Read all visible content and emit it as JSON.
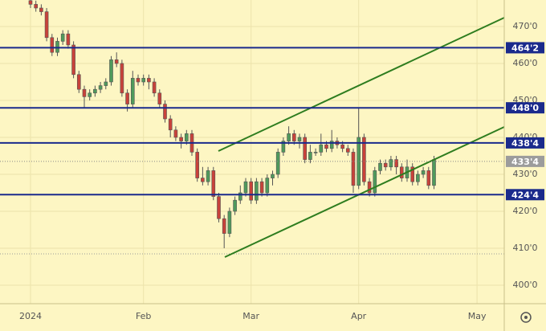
{
  "chart_data": {
    "type": "candlestick",
    "x": [
      0,
      1,
      2,
      3,
      4,
      5,
      6,
      7,
      8,
      9,
      10,
      11,
      12,
      13,
      14,
      15,
      16,
      17,
      18,
      19,
      20,
      21,
      22,
      23,
      24,
      25,
      26,
      27,
      28,
      29,
      30,
      31,
      32,
      33,
      34,
      35,
      36,
      37,
      38,
      39,
      40,
      41,
      42,
      43,
      44,
      45,
      46,
      47,
      48,
      49,
      50,
      51,
      52,
      53,
      54,
      55,
      56,
      57,
      58,
      59,
      60,
      61,
      62,
      63,
      64,
      65,
      66,
      67,
      68,
      69,
      70,
      71,
      72,
      73,
      74,
      75
    ],
    "open": [
      477,
      476,
      475,
      474,
      467,
      463,
      466,
      468,
      465,
      457,
      453,
      451,
      452,
      453,
      454,
      455,
      461,
      460,
      452,
      449,
      456,
      455,
      456,
      455,
      452,
      449,
      445,
      442,
      440,
      439,
      441,
      436,
      429,
      428,
      431,
      424,
      418,
      414,
      420,
      423,
      425,
      428,
      423,
      428,
      425,
      429,
      430,
      436,
      439,
      441,
      439,
      440,
      434,
      436,
      436,
      438,
      437,
      439,
      438,
      437,
      436,
      427,
      440,
      428,
      425,
      431,
      433,
      432,
      434,
      432,
      429,
      432,
      428,
      430,
      431,
      427
    ],
    "high": [
      478,
      477,
      476,
      475,
      468,
      467,
      469,
      469,
      466,
      458,
      454,
      453,
      454,
      455,
      456,
      462,
      463,
      461,
      453,
      458,
      457,
      457,
      457,
      456,
      453,
      450,
      446,
      443,
      441,
      442,
      442,
      437,
      432,
      432,
      432,
      425,
      419,
      421,
      424,
      427,
      429,
      429,
      429,
      429,
      430,
      431,
      437,
      440,
      443,
      442,
      441,
      441,
      438,
      437,
      441,
      439,
      442,
      440,
      439,
      438,
      437,
      448,
      441,
      429,
      432,
      434,
      434,
      435,
      435,
      433,
      434,
      433,
      431,
      432,
      432,
      435
    ],
    "low": [
      475,
      474,
      473,
      466,
      462,
      462,
      465,
      464,
      456,
      452,
      448,
      450,
      451,
      452,
      453,
      454,
      459,
      451,
      447,
      448,
      454,
      454,
      453,
      451,
      448,
      444,
      440,
      439,
      437,
      438,
      435,
      428,
      427,
      427,
      423,
      417,
      410,
      413,
      419,
      422,
      424,
      422,
      422,
      424,
      424,
      427,
      429,
      435,
      438,
      438,
      437,
      433,
      433,
      435,
      435,
      436,
      436,
      437,
      436,
      435,
      425,
      426,
      427,
      424,
      424,
      430,
      431,
      431,
      430,
      428,
      428,
      427,
      427,
      429,
      426,
      426
    ],
    "close": [
      476,
      475,
      474,
      467,
      463,
      466,
      468,
      465,
      457,
      453,
      451,
      452,
      453,
      454,
      455,
      461,
      460,
      452,
      449,
      456,
      455,
      456,
      455,
      452,
      449,
      445,
      442,
      440,
      439,
      441,
      436,
      429,
      428,
      431,
      424,
      418,
      414,
      420,
      423,
      425,
      428,
      423,
      428,
      425,
      429,
      430,
      436,
      439,
      441,
      439,
      440,
      434,
      436,
      436,
      438,
      437,
      439,
      438,
      437,
      436,
      427,
      440,
      428,
      425,
      431,
      433,
      432,
      434,
      432,
      429,
      432,
      428,
      430,
      431,
      427,
      434
    ],
    "up_color": "#4f9a5c",
    "down_color": "#c8423a",
    "xlim": [
      -5.67,
      88.06
    ],
    "xticks": [
      {
        "value": 0,
        "label": "2024"
      },
      {
        "value": 21,
        "label": "Feb"
      },
      {
        "value": 41,
        "label": "Mar"
      },
      {
        "value": 61,
        "label": "Apr"
      },
      {
        "value": 83,
        "label": "May"
      }
    ],
    "ylim": [
      395,
      477.17
    ],
    "yticks": [
      {
        "value": 400,
        "label": "400'0"
      },
      {
        "value": 410,
        "label": "410'0"
      },
      {
        "value": 420,
        "label": "420'0"
      },
      {
        "value": 430,
        "label": "430'0"
      },
      {
        "value": 440,
        "label": "440'0"
      },
      {
        "value": 450,
        "label": "450'0"
      },
      {
        "value": 460,
        "label": "460'0"
      },
      {
        "value": 470,
        "label": "470'0"
      }
    ],
    "grid": true,
    "levels": [
      {
        "value": 464.25,
        "label": "464'2"
      },
      {
        "value": 448,
        "label": "448'0"
      },
      {
        "value": 438.5,
        "label": "438'4"
      },
      {
        "value": 424.5,
        "label": "424'4"
      }
    ],
    "level_color": "#1a2a8c",
    "last_price": {
      "value": 433.5,
      "label": "433'4"
    },
    "last_color": "#9c9c9c"
  }
}
